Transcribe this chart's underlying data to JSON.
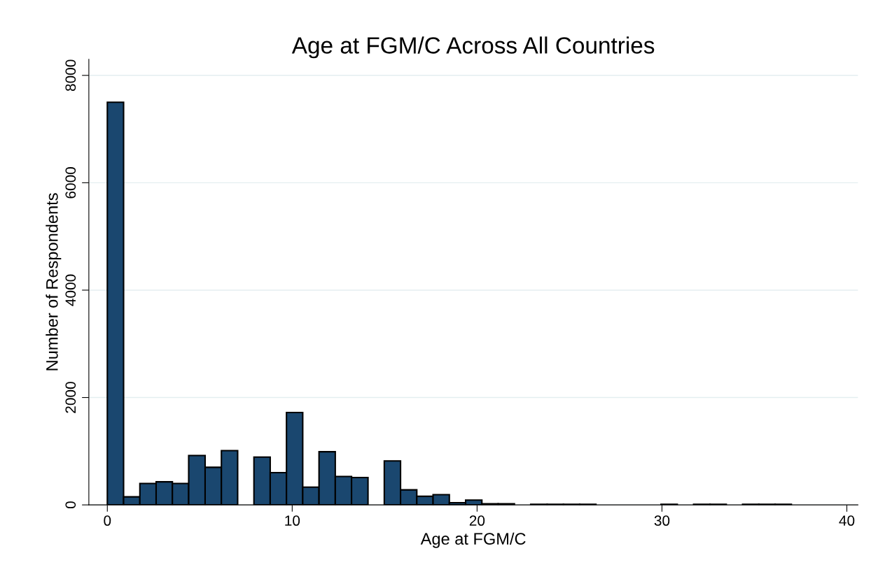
{
  "chart_data": {
    "type": "histogram",
    "title": "Age at FGM/C Across All Countries",
    "xlabel": "Age at FGM/C",
    "ylabel": "Number of Respondents",
    "bins": [
      0,
      0.88,
      1.76,
      2.64,
      3.52,
      4.4,
      5.29,
      6.17,
      7.05,
      7.93,
      8.81,
      9.69,
      10.57,
      11.45,
      12.33,
      13.21,
      14.1,
      14.98,
      15.86,
      16.74,
      17.62,
      18.5,
      19.38,
      20.26,
      21.14,
      22.02,
      22.9,
      23.79,
      24.67,
      25.55,
      26.43,
      27.31,
      28.19,
      29.07,
      29.95,
      30.83,
      31.71,
      32.6,
      33.48,
      34.36,
      35.24,
      36.12,
      37.0
    ],
    "values": [
      7500,
      150,
      400,
      430,
      400,
      920,
      700,
      1010,
      0,
      890,
      600,
      1720,
      330,
      990,
      530,
      510,
      0,
      820,
      280,
      160,
      190,
      40,
      90,
      20,
      20,
      0,
      10,
      10,
      10,
      10,
      0,
      0,
      0,
      0,
      10,
      0,
      10,
      10,
      0,
      10,
      10,
      10
    ],
    "color": "#1a476f",
    "xlim": [
      -1.0,
      40.6
    ],
    "xticks": [
      0,
      10,
      20,
      30,
      40
    ],
    "ylim": [
      0,
      8300
    ],
    "yticks": [
      0,
      2000,
      4000,
      6000,
      8000
    ],
    "grid": "y"
  }
}
